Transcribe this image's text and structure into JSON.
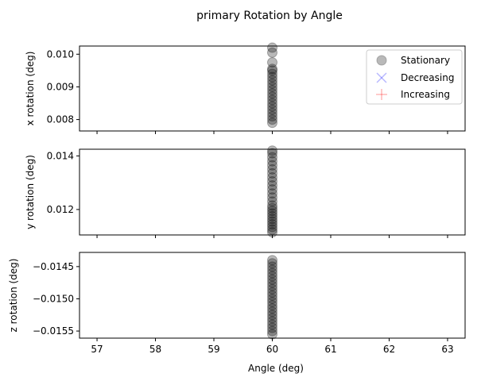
{
  "chart_data": {
    "type": "scatter",
    "title": "primary Rotation by Angle",
    "xlabel": "Angle (deg)",
    "xlim": [
      56.7,
      63.3
    ],
    "xticks": [
      "57",
      "58",
      "59",
      "60",
      "61",
      "62",
      "63"
    ],
    "xtick_values": [
      57,
      58,
      59,
      60,
      61,
      62,
      63
    ],
    "legend": {
      "placement": "top-right of first panel",
      "entries": [
        {
          "name": "Stationary",
          "marker": "circle",
          "color": "#808080"
        },
        {
          "name": "Decreasing",
          "marker": "x",
          "color": "#0000ff"
        },
        {
          "name": "Increasing",
          "marker": "plus",
          "color": "#ff0000"
        }
      ]
    },
    "panels": [
      {
        "ylabel": "x rotation (deg)",
        "ylim": [
          0.00765,
          0.01025
        ],
        "yticks": [
          "0.008",
          "0.009",
          "0.010"
        ],
        "ytick_values": [
          0.008,
          0.009,
          0.01
        ],
        "series": [
          {
            "name": "Stationary",
            "x": 60,
            "y": [
              0.0079,
              0.008,
              0.0081,
              0.0082,
              0.0083,
              0.0084,
              0.0085,
              0.0086,
              0.0087,
              0.0088,
              0.0089,
              0.009,
              0.0091,
              0.0092,
              0.0093,
              0.0094,
              0.0095,
              0.00955,
              0.00975,
              0.01005,
              0.0102
            ]
          }
        ]
      },
      {
        "ylabel": "y rotation (deg)",
        "ylim": [
          0.01105,
          0.01425
        ],
        "yticks": [
          "0.012",
          "0.014"
        ],
        "ytick_values": [
          0.012,
          0.014
        ],
        "series": [
          {
            "name": "Stationary",
            "x": 60,
            "y": [
              0.01115,
              0.01125,
              0.01135,
              0.01145,
              0.01155,
              0.01165,
              0.01175,
              0.01185,
              0.01195,
              0.01205,
              0.01215,
              0.0123,
              0.01245,
              0.0126,
              0.01275,
              0.0129,
              0.01305,
              0.0132,
              0.01335,
              0.0135,
              0.01365,
              0.0138,
              0.01395,
              0.0141,
              0.0142
            ]
          }
        ]
      },
      {
        "ylabel": "z rotation (deg)",
        "ylim": [
          -0.01561,
          -0.01428
        ],
        "yticks": [
          "−0.0145",
          "−0.0150",
          "−0.0155"
        ],
        "ytick_values": [
          -0.0145,
          -0.015,
          -0.0155
        ],
        "series": [
          {
            "name": "Stationary",
            "x": 60,
            "y": [
              -0.01555,
              -0.0155,
              -0.01545,
              -0.0154,
              -0.01535,
              -0.0153,
              -0.01525,
              -0.0152,
              -0.01515,
              -0.0151,
              -0.01505,
              -0.015,
              -0.01495,
              -0.0149,
              -0.01485,
              -0.0148,
              -0.01475,
              -0.0147,
              -0.01465,
              -0.0146,
              -0.01455,
              -0.0145,
              -0.01445,
              -0.0144
            ]
          }
        ]
      }
    ]
  }
}
